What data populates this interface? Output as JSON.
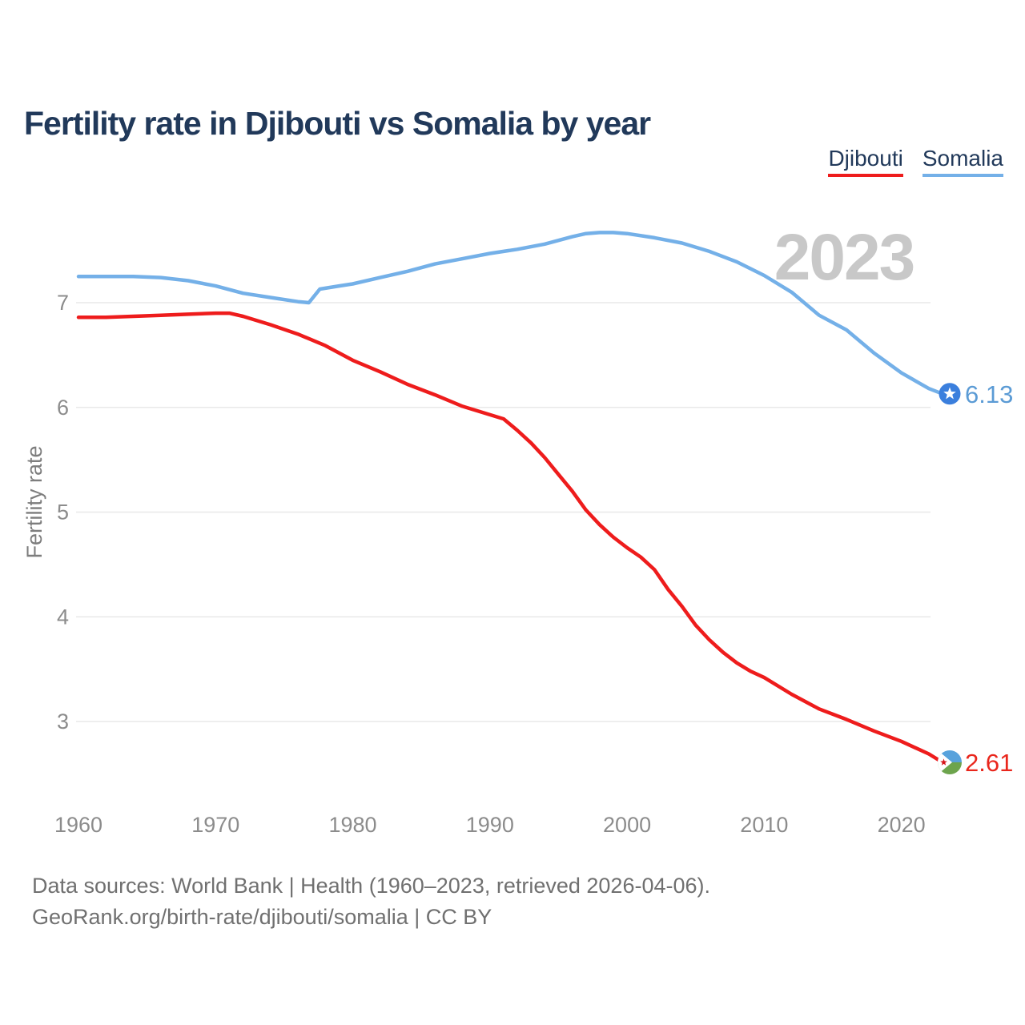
{
  "page": {
    "title": "Fertility rate in Djibouti vs Somalia by year"
  },
  "legend": {
    "items": [
      {
        "label": "Djibouti",
        "color": "#ee1c1c"
      },
      {
        "label": "Somalia",
        "color": "#74b0e8"
      }
    ]
  },
  "footer": {
    "line1": "Data sources: World Bank | Health (1960–2023, retrieved 2026-04-06).",
    "line2": "GeoRank.org/birth-rate/djibouti/somalia | CC BY"
  },
  "chart_data": {
    "type": "line",
    "title": "Fertility rate in Djibouti vs Somalia by year",
    "xlabel": "",
    "ylabel": "Fertility rate",
    "watermark": "2023",
    "xlim": [
      1960,
      2023
    ],
    "ylim": [
      2.4,
      7.75
    ],
    "yticks": [
      7,
      6,
      5,
      4,
      3
    ],
    "xticks": [
      1960,
      1970,
      1980,
      1990,
      2000,
      2010,
      2020
    ],
    "grid": "horizontal",
    "legend_position": "top-right",
    "colors": {
      "grid": "#e8e8e8",
      "axis_text": "#8c8c8c",
      "axis_title": "#7d7d7d",
      "watermark": "#c8c8c8"
    },
    "series": [
      {
        "name": "Somalia",
        "color": "#74b0e8",
        "marker": "somalia-flag",
        "marker_fill": "#3b7fdd",
        "end_label": "6.13",
        "end_label_color": "#5b9bd5",
        "points": [
          [
            1960,
            7.25
          ],
          [
            1962,
            7.25
          ],
          [
            1964,
            7.25
          ],
          [
            1966,
            7.24
          ],
          [
            1968,
            7.21
          ],
          [
            1970,
            7.16
          ],
          [
            1972,
            7.09
          ],
          [
            1974,
            7.05
          ],
          [
            1976,
            7.01
          ],
          [
            1976.8,
            7.0
          ],
          [
            1977.6,
            7.13
          ],
          [
            1979,
            7.16
          ],
          [
            1980,
            7.18
          ],
          [
            1982,
            7.24
          ],
          [
            1984,
            7.3
          ],
          [
            1986,
            7.37
          ],
          [
            1988,
            7.42
          ],
          [
            1990,
            7.47
          ],
          [
            1992,
            7.51
          ],
          [
            1994,
            7.56
          ],
          [
            1996,
            7.63
          ],
          [
            1997,
            7.66
          ],
          [
            1998,
            7.67
          ],
          [
            1999,
            7.67
          ],
          [
            2000,
            7.66
          ],
          [
            2002,
            7.62
          ],
          [
            2004,
            7.57
          ],
          [
            2006,
            7.49
          ],
          [
            2008,
            7.39
          ],
          [
            2010,
            7.26
          ],
          [
            2012,
            7.1
          ],
          [
            2014,
            6.88
          ],
          [
            2016,
            6.74
          ],
          [
            2018,
            6.52
          ],
          [
            2020,
            6.33
          ],
          [
            2022,
            6.18
          ],
          [
            2023,
            6.13
          ]
        ]
      },
      {
        "name": "Djibouti",
        "color": "#ee1c1c",
        "marker": "djibouti-flag",
        "marker_fill": "#ffffff",
        "end_label": "2.61",
        "end_label_color": "#e9261c",
        "points": [
          [
            1960,
            6.86
          ],
          [
            1962,
            6.86
          ],
          [
            1964,
            6.87
          ],
          [
            1966,
            6.88
          ],
          [
            1968,
            6.89
          ],
          [
            1970,
            6.9
          ],
          [
            1971,
            6.9
          ],
          [
            1972,
            6.87
          ],
          [
            1974,
            6.79
          ],
          [
            1976,
            6.7
          ],
          [
            1978,
            6.59
          ],
          [
            1980,
            6.45
          ],
          [
            1982,
            6.34
          ],
          [
            1984,
            6.22
          ],
          [
            1986,
            6.12
          ],
          [
            1988,
            6.01
          ],
          [
            1990,
            5.93
          ],
          [
            1991,
            5.89
          ],
          [
            1992,
            5.78
          ],
          [
            1993,
            5.66
          ],
          [
            1994,
            5.52
          ],
          [
            1995,
            5.36
          ],
          [
            1996,
            5.2
          ],
          [
            1997,
            5.02
          ],
          [
            1998,
            4.88
          ],
          [
            1999,
            4.76
          ],
          [
            2000,
            4.66
          ],
          [
            2001,
            4.57
          ],
          [
            2002,
            4.45
          ],
          [
            2003,
            4.26
          ],
          [
            2004,
            4.1
          ],
          [
            2005,
            3.92
          ],
          [
            2006,
            3.78
          ],
          [
            2007,
            3.66
          ],
          [
            2008,
            3.56
          ],
          [
            2009,
            3.48
          ],
          [
            2010,
            3.42
          ],
          [
            2012,
            3.26
          ],
          [
            2014,
            3.12
          ],
          [
            2016,
            3.02
          ],
          [
            2018,
            2.91
          ],
          [
            2020,
            2.81
          ],
          [
            2022,
            2.69
          ],
          [
            2023,
            2.61
          ]
        ]
      }
    ],
    "flag_colors": {
      "djibouti_blue": "#58a2dc",
      "djibouti_green": "#6da44d",
      "djibouti_star": "#d7141a",
      "somalia_star": "#ffffff"
    }
  }
}
